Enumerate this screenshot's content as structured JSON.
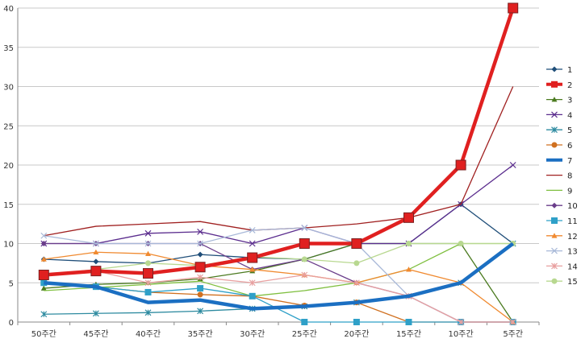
{
  "chart_data": {
    "type": "line",
    "title": "",
    "xlabel": "",
    "ylabel": "",
    "categories": [
      "50주간",
      "45주간",
      "40주간",
      "35주간",
      "30주간",
      "25주간",
      "20주간",
      "15주간",
      "10주간",
      "5주간"
    ],
    "ylim": [
      0,
      40
    ],
    "yticks": [
      0,
      5,
      10,
      15,
      20,
      25,
      30,
      35,
      40
    ],
    "grid": "horizontal",
    "legend_position": "right",
    "series": [
      {
        "name": "1",
        "color": "#1f4e79",
        "marker": "diamond",
        "width": 1,
        "values": [
          8,
          7.7,
          7.5,
          8.6,
          8.2,
          8,
          10,
          10,
          15,
          10
        ]
      },
      {
        "name": "2",
        "color": "#e02020",
        "marker": "square",
        "width": 4,
        "values": [
          6,
          6.5,
          6.2,
          7,
          8.2,
          10,
          10,
          13.3,
          20,
          40
        ]
      },
      {
        "name": "3",
        "color": "#4a7a1f",
        "marker": "triangle",
        "width": 1,
        "values": [
          4.3,
          4.8,
          5,
          5.5,
          6.5,
          8,
          10,
          10,
          10,
          0
        ]
      },
      {
        "name": "4",
        "color": "#5b2d8e",
        "marker": "x",
        "width": 1,
        "values": [
          10,
          10,
          11.3,
          11.5,
          10,
          12,
          10,
          10,
          15,
          20
        ]
      },
      {
        "name": "5",
        "color": "#2e8ba0",
        "marker": "star",
        "width": 1,
        "values": [
          1,
          1.1,
          1.2,
          1.4,
          1.7,
          2,
          2.5,
          3.3,
          5,
          10
        ]
      },
      {
        "name": "6",
        "color": "#d07020",
        "marker": "circle",
        "width": 1,
        "values": [
          5,
          4.5,
          3.8,
          3.5,
          3.3,
          2.1,
          2.5,
          0,
          0,
          0
        ]
      },
      {
        "name": "7",
        "color": "#1b6fc2",
        "marker": "none",
        "width": 4,
        "values": [
          5,
          4.5,
          2.5,
          2.8,
          1.7,
          2,
          2.5,
          3.3,
          5,
          10
        ]
      },
      {
        "name": "8",
        "color": "#a02020",
        "marker": "none",
        "width": 1,
        "values": [
          11,
          12.2,
          12.5,
          12.8,
          11.7,
          12,
          12.5,
          13.3,
          15,
          30
        ]
      },
      {
        "name": "9",
        "color": "#7fbf3f",
        "marker": "none",
        "width": 1,
        "values": [
          4,
          4.4,
          4.8,
          5.2,
          3.3,
          4,
          5,
          6.7,
          10,
          10
        ]
      },
      {
        "name": "10",
        "color": "#6a3d8a",
        "marker": "diamond",
        "width": 1,
        "values": [
          10,
          10,
          10,
          10,
          6.7,
          8,
          5,
          3.3,
          0,
          0
        ]
      },
      {
        "name": "11",
        "color": "#2fa0c8",
        "marker": "square",
        "width": 1,
        "values": [
          5,
          4.5,
          3.8,
          4.3,
          3.3,
          0,
          0,
          0,
          0,
          0
        ]
      },
      {
        "name": "12",
        "color": "#f08a30",
        "marker": "triangle",
        "width": 1,
        "values": [
          8,
          8.9,
          8.7,
          7.2,
          6.7,
          6,
          5,
          6.7,
          5,
          0
        ]
      },
      {
        "name": "13",
        "color": "#a8b8d8",
        "marker": "x",
        "width": 1,
        "values": [
          11,
          10,
          10,
          10,
          11.7,
          12,
          10,
          3.3,
          0,
          0
        ]
      },
      {
        "name": "14",
        "color": "#e8a0a0",
        "marker": "star",
        "width": 1,
        "values": [
          6,
          6.5,
          5,
          5.7,
          5,
          6,
          5,
          3.3,
          0,
          0
        ]
      },
      {
        "name": "15",
        "color": "#b8d890",
        "marker": "circle",
        "width": 1,
        "values": [
          6,
          6.7,
          7.5,
          7.2,
          8.3,
          8,
          7.5,
          10,
          10,
          10
        ]
      }
    ]
  }
}
